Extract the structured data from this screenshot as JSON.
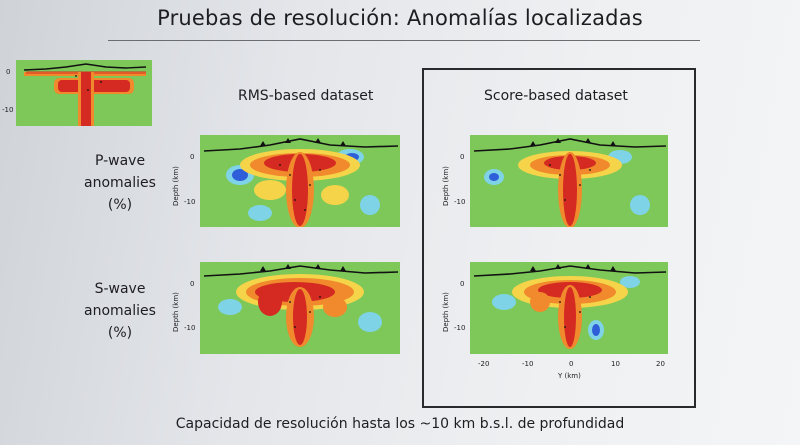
{
  "title": "Pruebas de resolución: Anomalías localizadas",
  "column_headers": [
    "RMS-based dataset",
    "Score-based dataset"
  ],
  "row_labels": {
    "p_wave": [
      "P-wave",
      "anomalies",
      "(%)"
    ],
    "s_wave": [
      "S-wave",
      "anomalies",
      "(%)"
    ]
  },
  "axes": {
    "depth_label": "Depth (km)",
    "depth_ticks": [
      "0",
      "-10"
    ],
    "y_label": "Y (km)",
    "y_ticks": [
      "-20",
      "-10",
      "0",
      "10",
      "20"
    ]
  },
  "footer": "Capacidad de resolución hasta los ~10 km b.s.l. de profundidad",
  "colors": {
    "background": "#7ec85a",
    "red": "#d42a22",
    "orange": "#f08a2c",
    "yellow": "#f6d44a",
    "blue": "#2f5fd8",
    "cyan": "#7fd3e6"
  }
}
